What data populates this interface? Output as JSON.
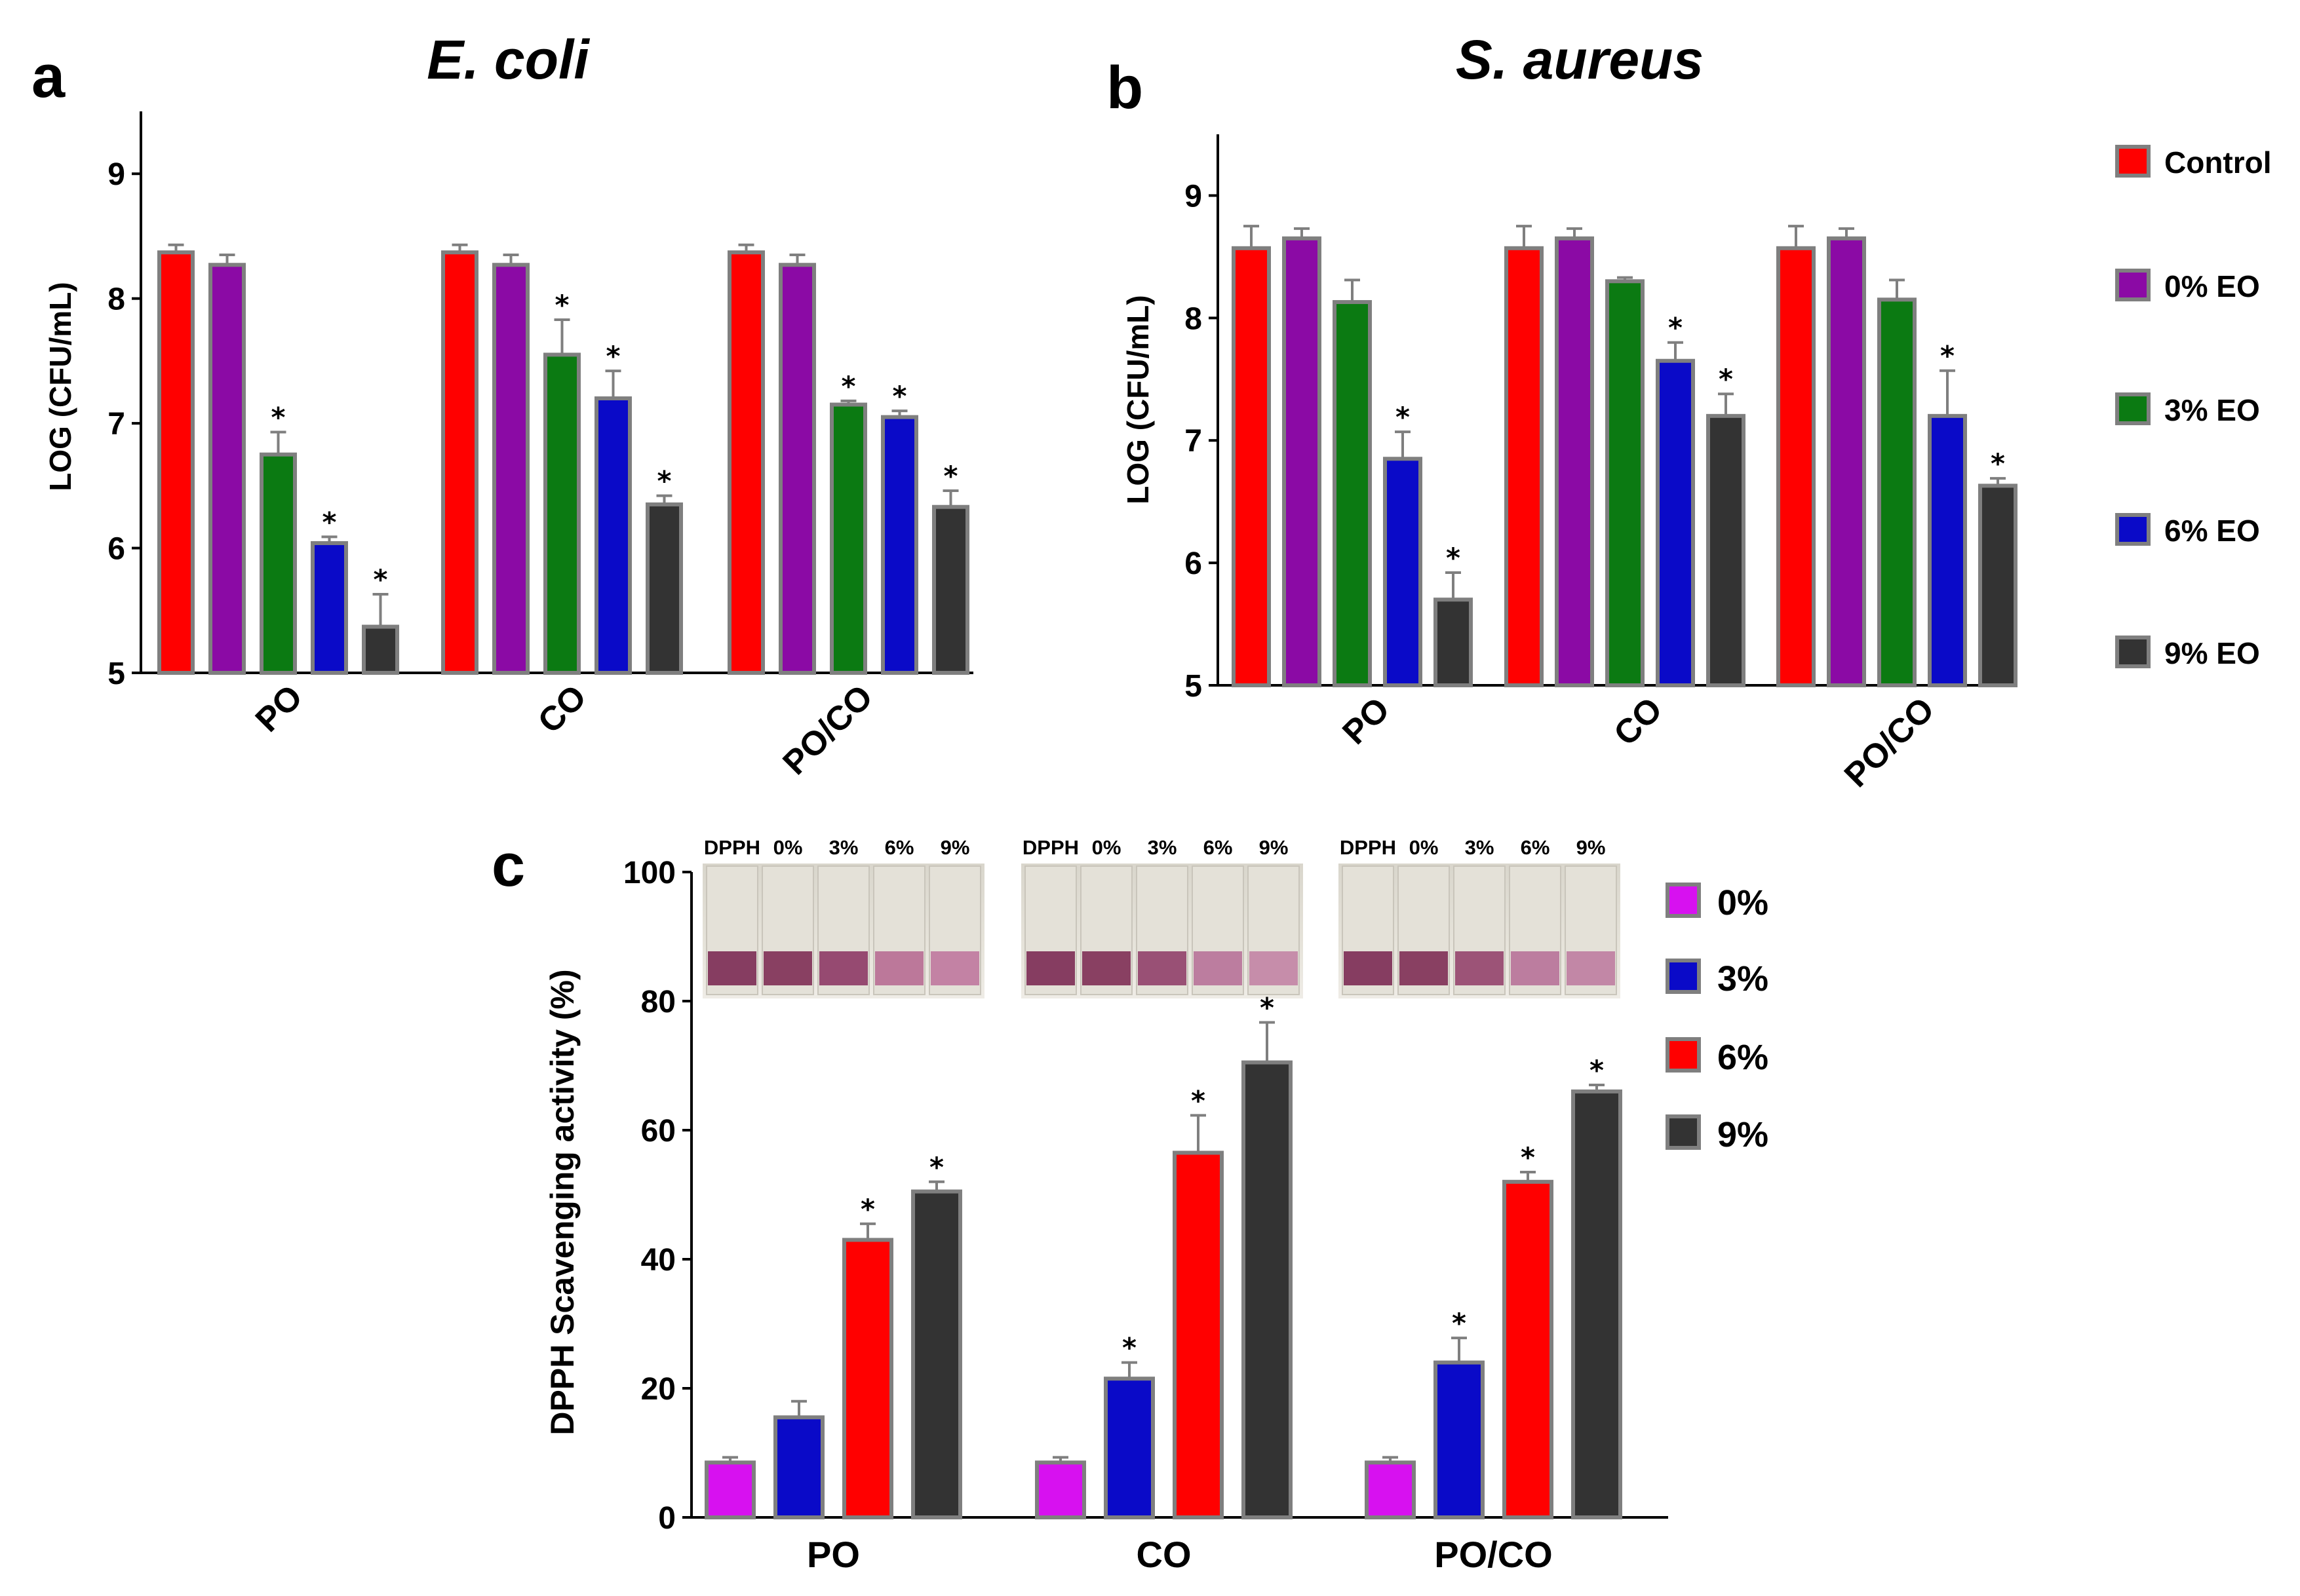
{
  "figure": {
    "panels": {
      "a": "a",
      "b": "b",
      "c": "c"
    },
    "legend_ab": [
      "Control",
      "0% EO",
      "3% EO",
      "6% EO",
      "9% EO"
    ],
    "legend_c": [
      "0%",
      "3%",
      "6%",
      "9%"
    ],
    "vial_labels": [
      "DPPH",
      "0%",
      "3%",
      "6%",
      "9%"
    ]
  },
  "colors": {
    "control": "#ff0000",
    "eo0": "#8b0aa5",
    "eo3": "#0b7a12",
    "eo6": "#0a0ac8",
    "eo9": "#333333",
    "c0": "#d711f0",
    "c3": "#0a0ac8",
    "c6": "#ff0000",
    "c9": "#333333",
    "bar_edge": "#7f7f7f"
  },
  "chart_data": [
    {
      "id": "a",
      "type": "bar",
      "title": "E. coli",
      "xlabel": "",
      "ylabel": "LOG (CFU/mL)",
      "ylim": [
        5,
        9.5
      ],
      "yticks": [
        5,
        6,
        7,
        8,
        9
      ],
      "categories": [
        "PO",
        "CO",
        "PO/CO"
      ],
      "series": [
        {
          "name": "Control",
          "values": [
            8.37,
            8.37,
            8.37
          ],
          "errors": [
            0.06,
            0.06,
            0.06
          ],
          "sig": [
            false,
            false,
            false
          ]
        },
        {
          "name": "0% EO",
          "values": [
            8.27,
            8.27,
            8.27
          ],
          "errors": [
            0.08,
            0.08,
            0.08
          ],
          "sig": [
            false,
            false,
            false
          ]
        },
        {
          "name": "3% EO",
          "values": [
            6.75,
            7.55,
            7.15
          ],
          "errors": [
            0.18,
            0.28,
            0.03
          ],
          "sig": [
            true,
            true,
            true
          ]
        },
        {
          "name": "6% EO",
          "values": [
            6.04,
            7.2,
            7.05
          ],
          "errors": [
            0.05,
            0.22,
            0.05
          ],
          "sig": [
            true,
            true,
            true
          ]
        },
        {
          "name": "9% EO",
          "values": [
            5.37,
            6.35,
            6.33
          ],
          "errors": [
            0.26,
            0.07,
            0.13
          ],
          "sig": [
            true,
            true,
            true
          ]
        }
      ]
    },
    {
      "id": "b",
      "type": "bar",
      "title": "S. aureus",
      "xlabel": "",
      "ylabel": "LOG (CFU/mL)",
      "ylim": [
        5,
        9.5
      ],
      "yticks": [
        5,
        6,
        7,
        8,
        9
      ],
      "categories": [
        "PO",
        "CO",
        "PO/CO"
      ],
      "series": [
        {
          "name": "Control",
          "values": [
            8.57,
            8.57,
            8.57
          ],
          "errors": [
            0.18,
            0.18,
            0.18
          ],
          "sig": [
            false,
            false,
            false
          ]
        },
        {
          "name": "0% EO",
          "values": [
            8.65,
            8.65,
            8.65
          ],
          "errors": [
            0.08,
            0.08,
            0.08
          ],
          "sig": [
            false,
            false,
            false
          ]
        },
        {
          "name": "3% EO",
          "values": [
            8.13,
            8.3,
            8.15
          ],
          "errors": [
            0.18,
            0.03,
            0.16
          ],
          "sig": [
            false,
            false,
            false
          ]
        },
        {
          "name": "6% EO",
          "values": [
            6.85,
            7.65,
            7.2
          ],
          "errors": [
            0.22,
            0.15,
            0.37
          ],
          "sig": [
            true,
            true,
            true
          ]
        },
        {
          "name": "9% EO",
          "values": [
            5.7,
            7.2,
            6.63
          ],
          "errors": [
            0.22,
            0.18,
            0.06
          ],
          "sig": [
            true,
            true,
            true
          ]
        }
      ]
    },
    {
      "id": "c",
      "type": "bar",
      "title": "",
      "xlabel": "",
      "ylabel": "DPPH Scavenging activity (%)",
      "ylim": [
        0,
        100
      ],
      "yticks": [
        0,
        20,
        40,
        60,
        80,
        100
      ],
      "categories": [
        "PO",
        "CO",
        "PO/CO"
      ],
      "series": [
        {
          "name": "0%",
          "values": [
            8.5,
            8.5,
            8.5
          ],
          "errors": [
            0.8,
            0.8,
            0.8
          ],
          "sig": [
            false,
            false,
            false
          ]
        },
        {
          "name": "3%",
          "values": [
            15.5,
            21.5,
            24.0
          ],
          "errors": [
            2.5,
            2.5,
            3.8
          ],
          "sig": [
            false,
            true,
            true
          ]
        },
        {
          "name": "6%",
          "values": [
            43.0,
            56.5,
            52.0
          ],
          "errors": [
            2.5,
            5.8,
            1.5
          ],
          "sig": [
            true,
            true,
            true
          ]
        },
        {
          "name": "9%",
          "values": [
            50.5,
            70.5,
            66.0
          ],
          "errors": [
            1.5,
            6.2,
            1.0
          ],
          "sig": [
            true,
            true,
            true
          ]
        }
      ]
    }
  ]
}
